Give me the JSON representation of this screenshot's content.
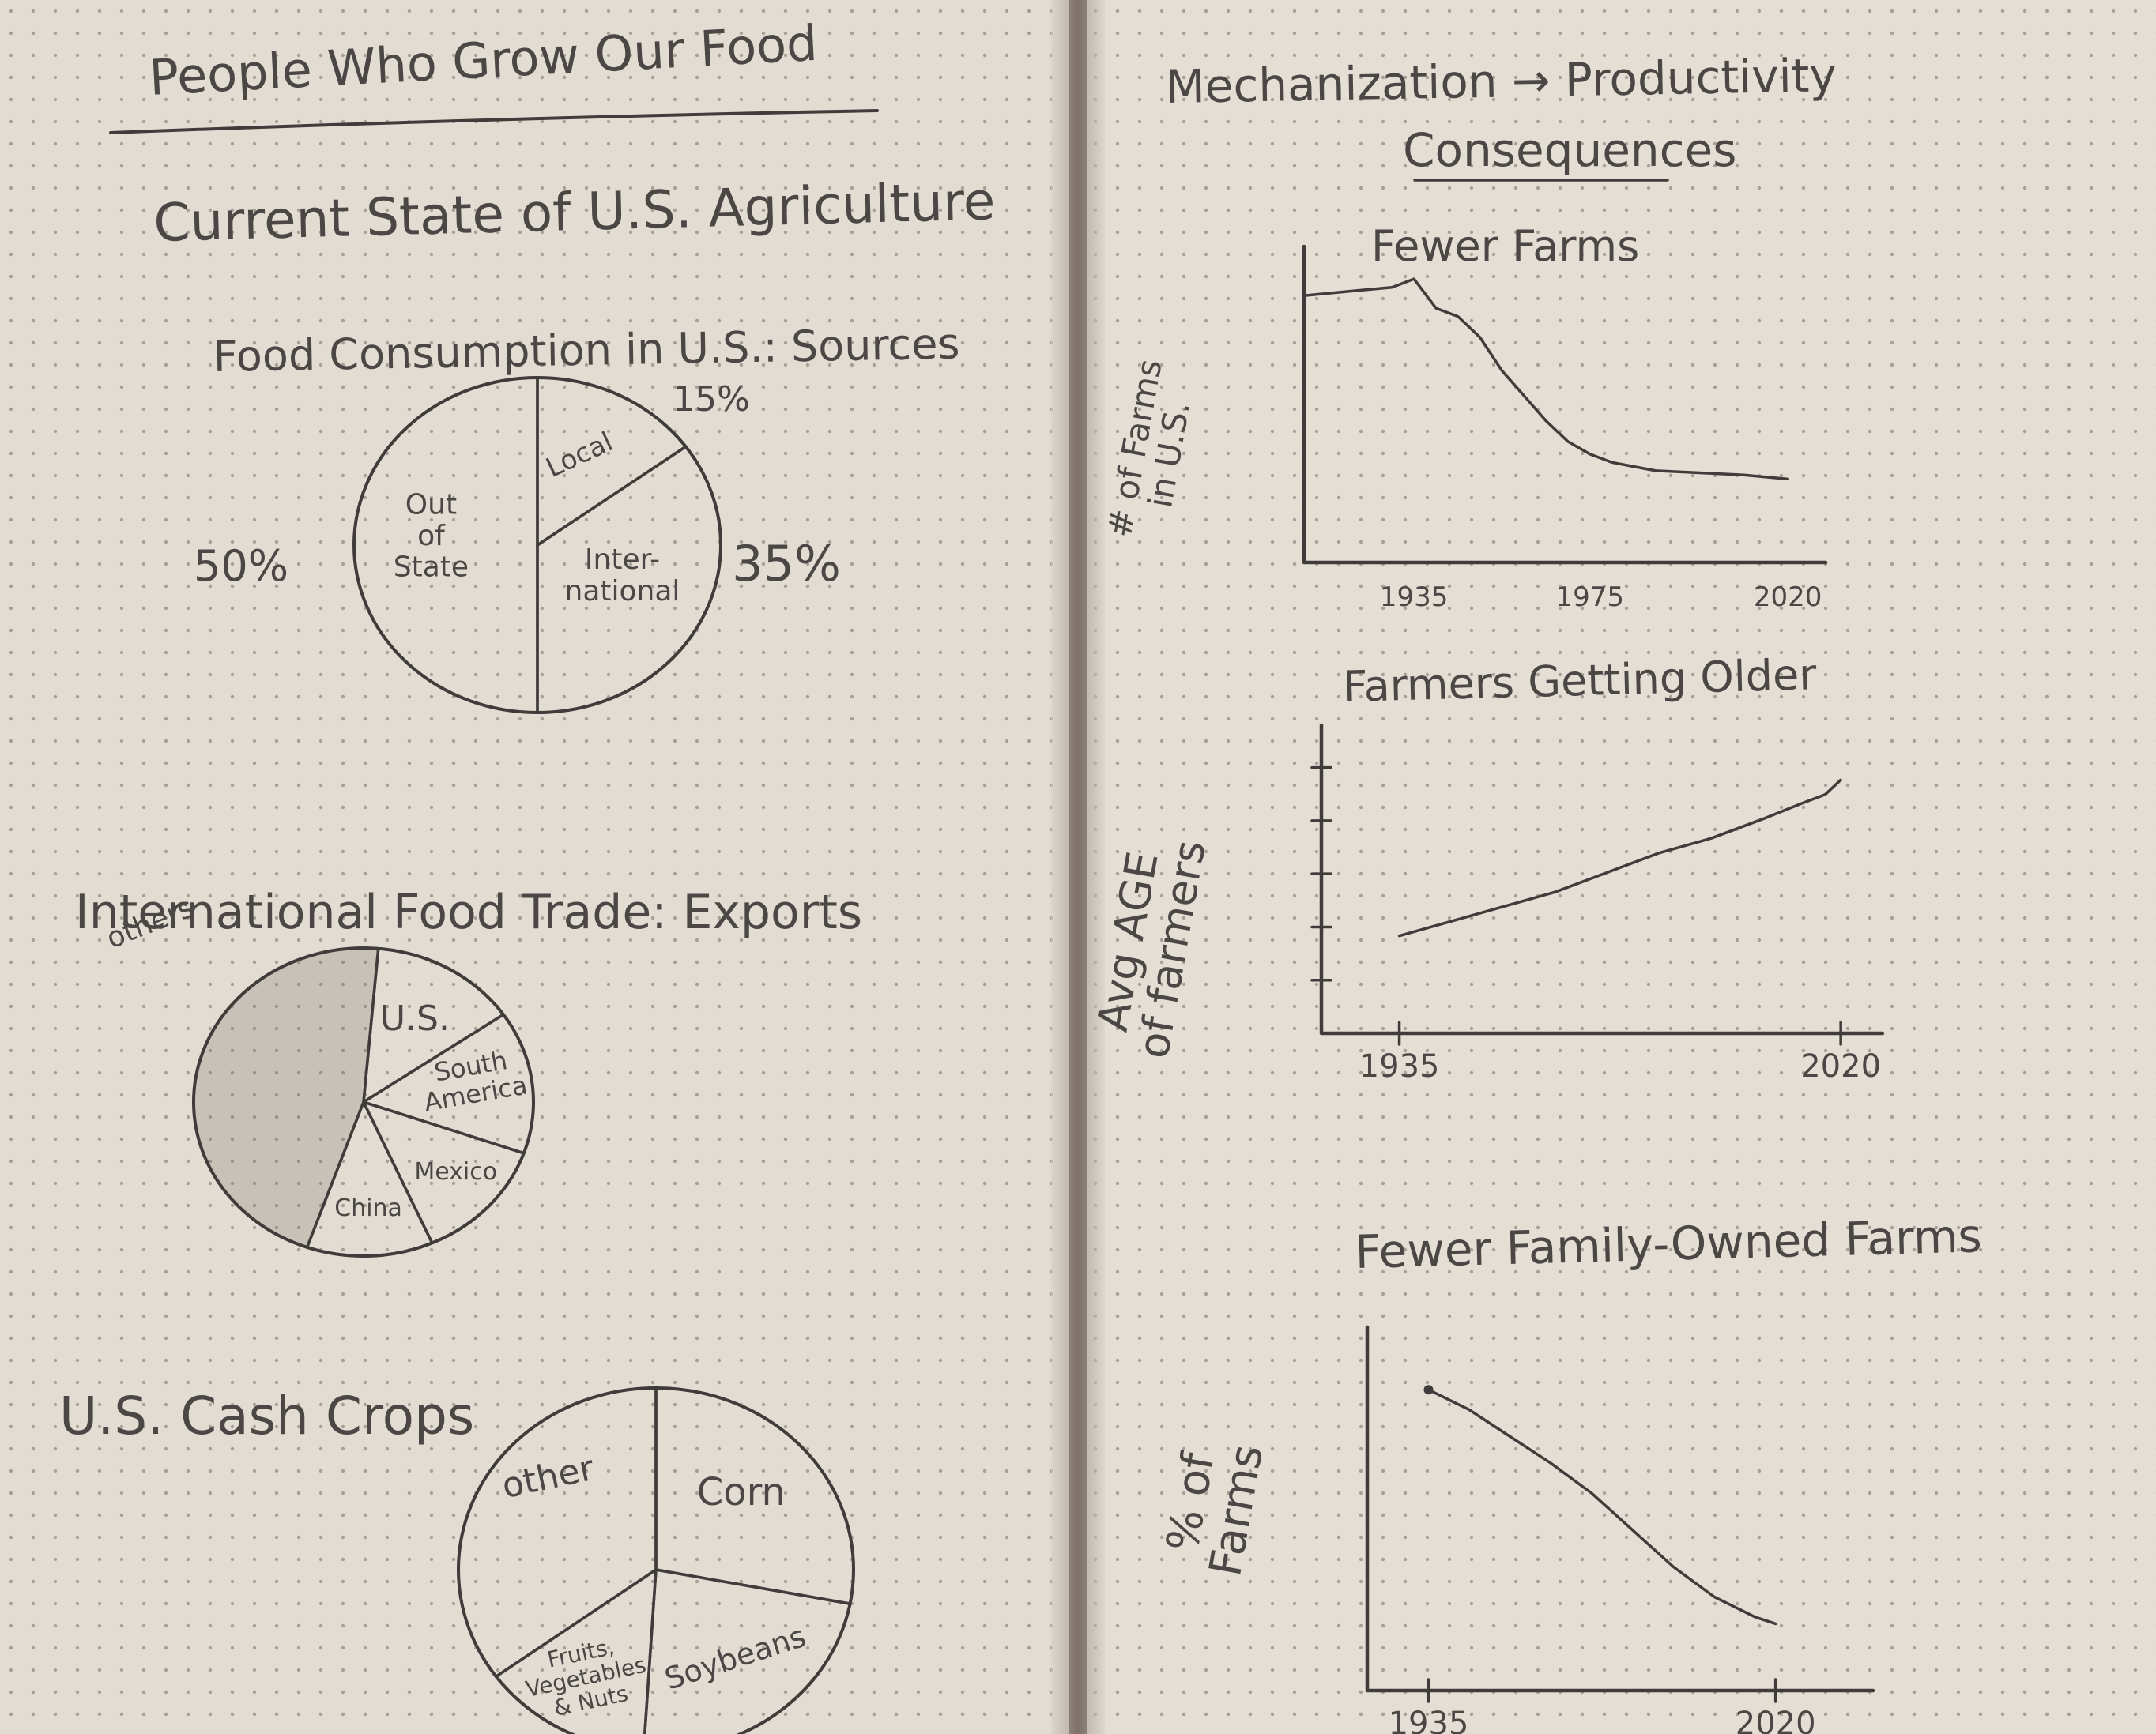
{
  "page_title": "People Who Grow Our Food",
  "left_page": {
    "section_title": "Current State of U.S. Agriculture"
  },
  "right_page": {
    "header_line1": "Mechanization → Productivity",
    "header_line2": "Consequences"
  },
  "colors": {
    "paper": "#e2dcd3",
    "ink": "#3f3c3a",
    "dots": "#a89f96"
  },
  "chart_data": [
    {
      "type": "pie",
      "title": "Food Consumption in U.S.: Sources",
      "slices": [
        {
          "label": "Out of State",
          "value": 50,
          "value_text": "50%"
        },
        {
          "label": "Local",
          "value": 15,
          "value_text": "15%"
        },
        {
          "label": "Inter-national",
          "value": 35,
          "value_text": "35%"
        }
      ]
    },
    {
      "type": "pie",
      "title": "International Food Trade: Exports",
      "slices": [
        {
          "label": "U.S.",
          "value": 14
        },
        {
          "label": "South America",
          "value": 15
        },
        {
          "label": "Mexico",
          "value": 13
        },
        {
          "label": "China",
          "value": 12
        },
        {
          "label": "others",
          "value": 46
        }
      ]
    },
    {
      "type": "pie",
      "title": "U.S. Cash Crops",
      "slices": [
        {
          "label": "Corn",
          "value": 28
        },
        {
          "label": "Soybeans",
          "value": 23
        },
        {
          "label": "Fruits, Vegetables & Nuts",
          "value": 14
        },
        {
          "label": "other",
          "value": 35
        }
      ]
    },
    {
      "type": "line",
      "title": "Fewer Farms",
      "ylabel": "# of Farms in U.S.",
      "x_ticks": [
        "1935",
        "1975",
        "2020"
      ],
      "x": [
        1910,
        1920,
        1930,
        1935,
        1940,
        1945,
        1950,
        1955,
        1960,
        1965,
        1970,
        1975,
        1980,
        1985,
        1990,
        2000,
        2010,
        2020
      ],
      "y": [
        6.4,
        6.5,
        6.6,
        6.8,
        6.1,
        5.9,
        5.4,
        4.6,
        4.0,
        3.4,
        2.9,
        2.6,
        2.4,
        2.3,
        2.2,
        2.15,
        2.1,
        2.0
      ]
    },
    {
      "type": "line",
      "title": "Farmers Getting Older",
      "ylabel": "Avg AGE of farmers",
      "x_ticks": [
        "1935",
        "2020"
      ],
      "x": [
        1935,
        1945,
        1955,
        1965,
        1975,
        1985,
        1995,
        2005,
        2012,
        2017,
        2020
      ],
      "y": [
        44,
        45.5,
        47,
        48.5,
        50.5,
        52.5,
        54,
        56,
        57.5,
        58.5,
        60
      ]
    },
    {
      "type": "line",
      "title": "Fewer Family-Owned Farms",
      "ylabel": "% of Farms",
      "x_ticks": [
        "1935",
        "2020"
      ],
      "x": [
        1935,
        1945,
        1955,
        1965,
        1975,
        1985,
        1995,
        2005,
        2015,
        2020
      ],
      "y": [
        90,
        84,
        76,
        68,
        59,
        48,
        37,
        28,
        22,
        20
      ]
    }
  ]
}
